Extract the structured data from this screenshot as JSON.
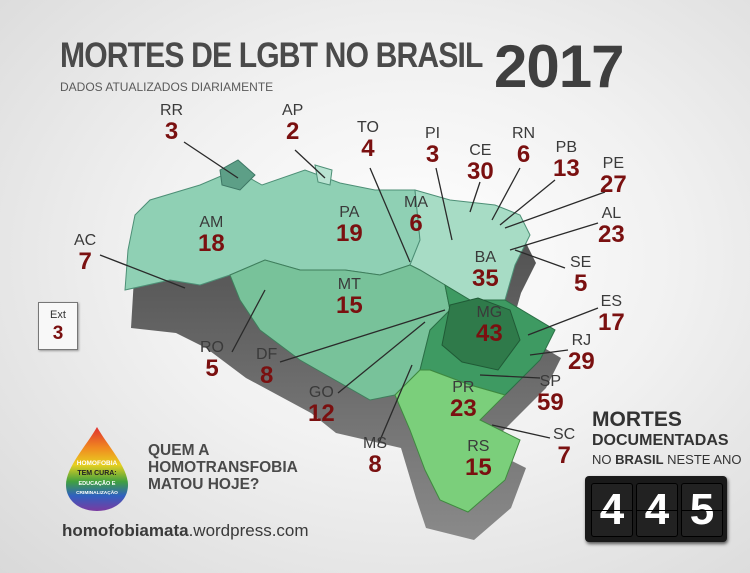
{
  "title": "MORTES DE LGBT NO BRASIL",
  "year": "2017",
  "subtitle": "DADOS ATUALIZADOS DIARIAMENTE",
  "states": [
    {
      "abbr": "RR",
      "count": "3"
    },
    {
      "abbr": "AP",
      "count": "2"
    },
    {
      "abbr": "TO",
      "count": "4"
    },
    {
      "abbr": "PI",
      "count": "3"
    },
    {
      "abbr": "CE",
      "count": "30"
    },
    {
      "abbr": "RN",
      "count": "6"
    },
    {
      "abbr": "PB",
      "count": "13"
    },
    {
      "abbr": "PE",
      "count": "27"
    },
    {
      "abbr": "AL",
      "count": "23"
    },
    {
      "abbr": "SE",
      "count": "5"
    },
    {
      "abbr": "BA",
      "count": "35"
    },
    {
      "abbr": "MA",
      "count": "6"
    },
    {
      "abbr": "PA",
      "count": "19"
    },
    {
      "abbr": "AM",
      "count": "18"
    },
    {
      "abbr": "AC",
      "count": "7"
    },
    {
      "abbr": "RO",
      "count": "5"
    },
    {
      "abbr": "MT",
      "count": "15"
    },
    {
      "abbr": "DF",
      "count": "8"
    },
    {
      "abbr": "GO",
      "count": "12"
    },
    {
      "abbr": "MG",
      "count": "43"
    },
    {
      "abbr": "ES",
      "count": "17"
    },
    {
      "abbr": "RJ",
      "count": "29"
    },
    {
      "abbr": "SP",
      "count": "59"
    },
    {
      "abbr": "PR",
      "count": "23"
    },
    {
      "abbr": "SC",
      "count": "7"
    },
    {
      "abbr": "RS",
      "count": "15"
    },
    {
      "abbr": "MS",
      "count": "8"
    }
  ],
  "ext": {
    "label": "Ext",
    "count": "3"
  },
  "slogan": {
    "line1": "QUEM A",
    "line2": "HOMOTRANSFOBIA",
    "line3": "MATOU HOJE?"
  },
  "logo_text": {
    "l1": "HOMOFOBIA",
    "l2": "TEM CURA:",
    "l3": "EDUCAÇÃO E",
    "l4": "CRIMINALIZAÇÃO"
  },
  "url": {
    "bold": "homofobiamata",
    "rest": ".wordpress.com"
  },
  "total": {
    "line1": "MORTES",
    "line2": "DOCUMENTADAS",
    "line3_pre": "NO ",
    "line3_bold": "BRASIL",
    "line3_post": " NESTE ANO",
    "digits": [
      "4",
      "4",
      "5"
    ]
  },
  "colors": {
    "count": "#7a1010",
    "north": "#8fd0b4",
    "northeast": "#a7dcc5",
    "center": "#78c29a",
    "southeast": "#3e9a62",
    "south": "#7bcf7b"
  }
}
